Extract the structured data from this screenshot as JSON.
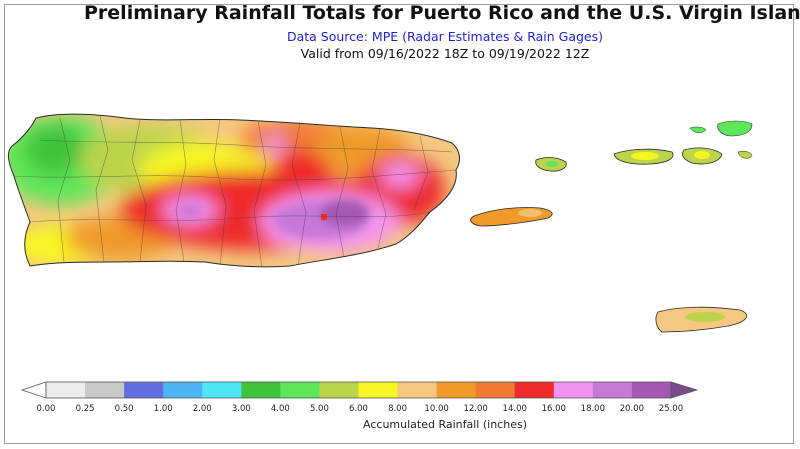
{
  "header": {
    "title": "Preliminary Rainfall Totals for Puerto Rico and the U.S. Virgin Island",
    "subtitle": "Data Source: MPE (Radar Estimates & Rain Gages)",
    "valid": "Valid from 09/16/2022 18Z to 09/19/2022 12Z"
  },
  "colorbar": {
    "title": "Accumulated Rainfall (inches)",
    "labels": [
      "0.00",
      "0.25",
      "0.50",
      "1.00",
      "2.00",
      "3.00",
      "4.00",
      "5.00",
      "6.00",
      "8.00",
      "10.00",
      "12.00",
      "14.00",
      "16.00",
      "18.00",
      "20.00",
      "25.00"
    ],
    "colors": [
      "#ececec",
      "#c8c8c8",
      "#5f6fe0",
      "#4cb4f0",
      "#4ee6f6",
      "#40c23a",
      "#5ee65a",
      "#bcd44c",
      "#f6f624",
      "#f4c880",
      "#f09a2a",
      "#f07a34",
      "#ee2a2a",
      "#f494f2",
      "#c878d8",
      "#a458b4"
    ],
    "start_color": "#ffffff",
    "end_color": "#7a4a8a"
  },
  "map": {
    "islands": [
      {
        "name": "Puerto Rico"
      },
      {
        "name": "Vieques"
      },
      {
        "name": "Culebra"
      },
      {
        "name": "St. Thomas"
      },
      {
        "name": "St. John"
      },
      {
        "name": "St. Croix"
      }
    ]
  }
}
